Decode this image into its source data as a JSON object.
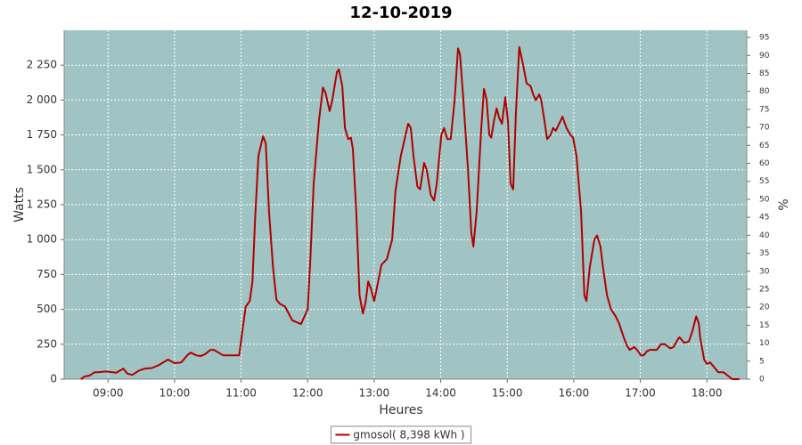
{
  "chart_data": {
    "type": "line",
    "title": "12-10-2019",
    "x_label": "Heures",
    "y_label": "Watts",
    "y2_label": "%",
    "x": [
      8.59,
      8.65,
      8.72,
      8.8,
      8.85,
      8.96,
      9.07,
      9.12,
      9.23,
      9.29,
      9.36,
      9.46,
      9.55,
      9.66,
      9.76,
      9.9,
      9.94,
      10.0,
      10.1,
      10.19,
      10.24,
      10.33,
      10.39,
      10.46,
      10.54,
      10.59,
      10.66,
      10.73,
      10.86,
      10.97,
      11.02,
      11.07,
      11.13,
      11.17,
      11.21,
      11.26,
      11.33,
      11.37,
      11.42,
      11.48,
      11.53,
      11.58,
      11.66,
      11.77,
      11.9,
      12.0,
      12.04,
      12.09,
      12.17,
      12.23,
      12.27,
      12.33,
      12.37,
      12.44,
      12.47,
      12.52,
      12.56,
      12.61,
      12.65,
      12.68,
      12.73,
      12.78,
      12.83,
      12.87,
      12.91,
      12.95,
      13.0,
      13.06,
      13.11,
      13.19,
      13.27,
      13.32,
      13.4,
      13.51,
      13.55,
      13.59,
      13.65,
      13.69,
      13.75,
      13.79,
      13.85,
      13.9,
      13.94,
      14.01,
      14.05,
      14.1,
      14.15,
      14.21,
      14.26,
      14.29,
      14.34,
      14.41,
      14.46,
      14.49,
      14.54,
      14.61,
      14.65,
      14.69,
      14.73,
      14.76,
      14.8,
      14.84,
      14.88,
      14.92,
      14.97,
      15.01,
      15.05,
      15.09,
      15.13,
      15.18,
      15.24,
      15.29,
      15.35,
      15.39,
      15.43,
      15.48,
      15.51,
      15.56,
      15.6,
      15.65,
      15.69,
      15.73,
      15.77,
      15.83,
      15.89,
      15.95,
      15.99,
      16.04,
      16.11,
      16.16,
      16.19,
      16.24,
      16.31,
      16.35,
      16.4,
      16.44,
      16.5,
      16.56,
      16.63,
      16.68,
      16.75,
      16.8,
      16.84,
      16.91,
      16.95,
      17.01,
      17.05,
      17.1,
      17.15,
      17.25,
      17.31,
      17.37,
      17.45,
      17.5,
      17.57,
      17.59,
      17.66,
      17.73,
      17.78,
      17.84,
      17.88,
      17.9,
      17.96,
      18.0,
      18.05,
      18.12,
      18.17,
      18.25,
      18.33,
      18.38,
      18.49
    ],
    "series": [
      {
        "name": "gmosol( 8,398 kWh )",
        "color": "#b00000",
        "values": [
          0,
          20,
          25,
          50,
          50,
          55,
          50,
          45,
          75,
          40,
          30,
          60,
          75,
          80,
          100,
          140,
          130,
          115,
          120,
          170,
          190,
          170,
          165,
          180,
          210,
          210,
          190,
          170,
          170,
          170,
          350,
          520,
          560,
          700,
          1150,
          1600,
          1740,
          1690,
          1200,
          800,
          570,
          540,
          520,
          420,
          395,
          500,
          850,
          1400,
          1850,
          2090,
          2050,
          1920,
          2000,
          2200,
          2220,
          2100,
          1800,
          1720,
          1730,
          1650,
          1200,
          600,
          470,
          550,
          700,
          650,
          560,
          700,
          820,
          860,
          1000,
          1350,
          1600,
          1830,
          1800,
          1600,
          1380,
          1360,
          1550,
          1500,
          1320,
          1280,
          1400,
          1750,
          1800,
          1720,
          1720,
          2000,
          2370,
          2330,
          2000,
          1500,
          1050,
          950,
          1200,
          1800,
          2080,
          2000,
          1750,
          1730,
          1850,
          1940,
          1870,
          1830,
          2020,
          1850,
          1400,
          1360,
          1900,
          2380,
          2250,
          2120,
          2100,
          2040,
          2000,
          2040,
          2000,
          1850,
          1720,
          1750,
          1800,
          1780,
          1820,
          1880,
          1800,
          1750,
          1730,
          1600,
          1200,
          600,
          560,
          800,
          1000,
          1030,
          950,
          800,
          600,
          500,
          450,
          400,
          300,
          240,
          210,
          230,
          210,
          170,
          170,
          200,
          210,
          210,
          250,
          250,
          220,
          230,
          290,
          300,
          260,
          270,
          340,
          450,
          400,
          300,
          140,
          110,
          120,
          80,
          50,
          50,
          20,
          0,
          0
        ]
      }
    ],
    "xlim": [
      8.34,
      18.6
    ],
    "xticks": [
      {
        "value": 9,
        "label": "09:00"
      },
      {
        "value": 10,
        "label": "10:00"
      },
      {
        "value": 11,
        "label": "11:00"
      },
      {
        "value": 12,
        "label": "12:00"
      },
      {
        "value": 13,
        "label": "13:00"
      },
      {
        "value": 14,
        "label": "14:00"
      },
      {
        "value": 15,
        "label": "15:00"
      },
      {
        "value": 16,
        "label": "16:00"
      },
      {
        "value": 17,
        "label": "17:00"
      },
      {
        "value": 18,
        "label": "18:00"
      }
    ],
    "ylim": [
      0,
      2500
    ],
    "yticks": [
      0,
      250,
      500,
      750,
      {
        "value": 1000,
        "label": "1 000"
      },
      {
        "value": 1250,
        "label": "1 250"
      },
      {
        "value": 1500,
        "label": "1 500"
      },
      {
        "value": 1750,
        "label": "1 750"
      },
      {
        "value": 2000,
        "label": "2 000"
      },
      {
        "value": 2250,
        "label": "2 250"
      }
    ],
    "y2lim": [
      0,
      97
    ],
    "y2ticks": [
      0,
      5,
      10,
      15,
      20,
      25,
      30,
      35,
      40,
      45,
      50,
      55,
      60,
      65,
      70,
      75,
      80,
      85,
      90,
      95
    ],
    "grid": true,
    "plot_background": "#a0c4c4",
    "legend": "bottom"
  }
}
